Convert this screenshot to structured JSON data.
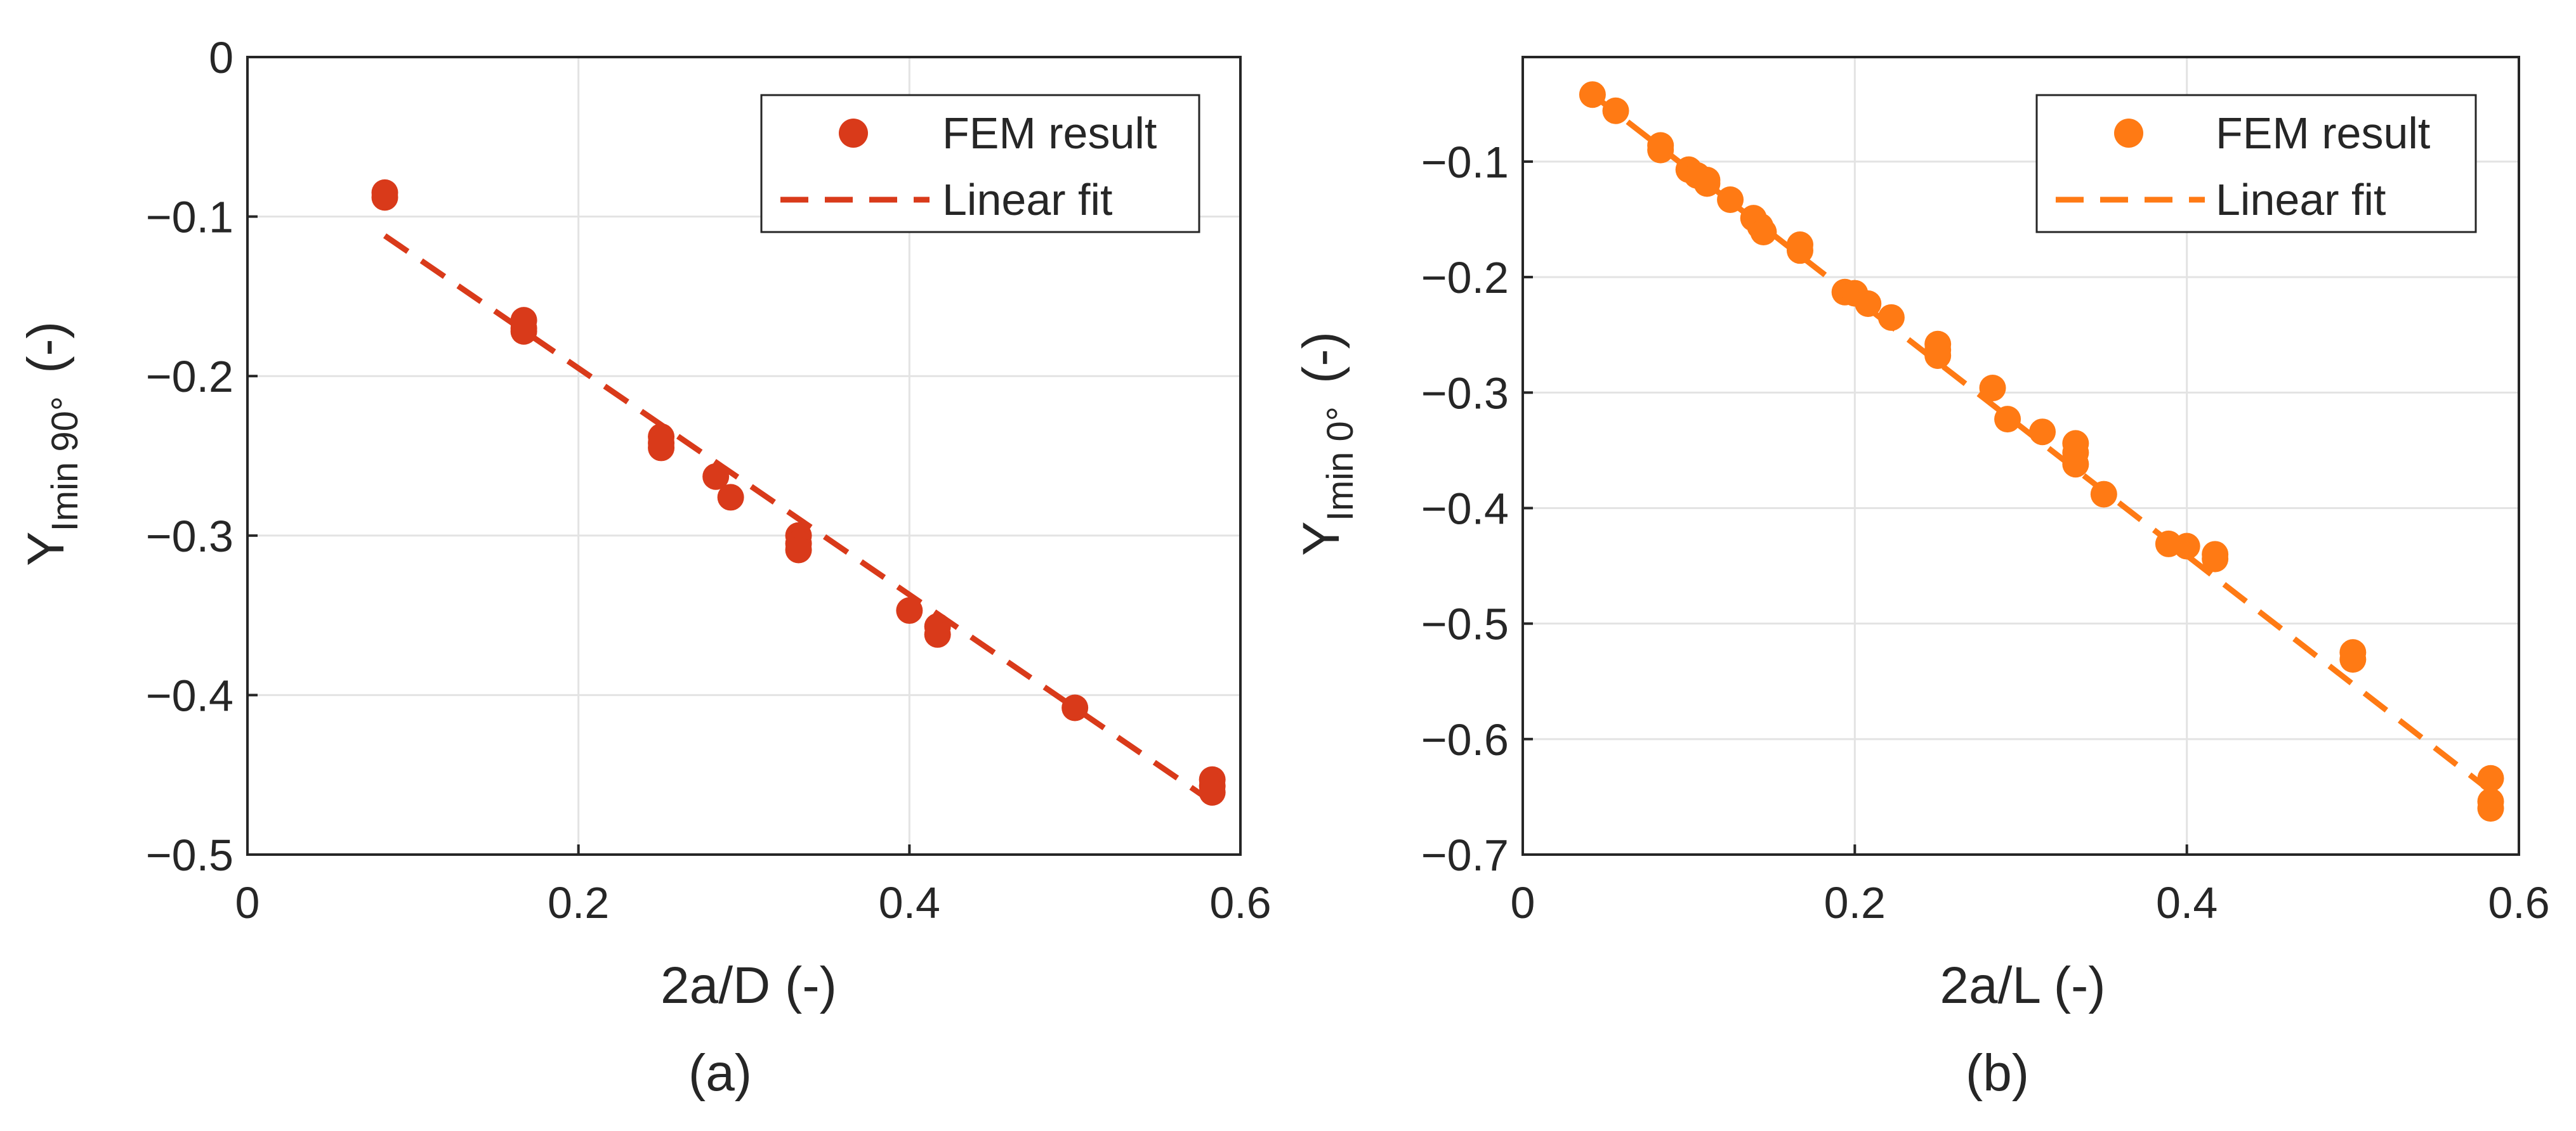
{
  "chart_data": [
    {
      "type": "scatter",
      "panel_label": "(a)",
      "xlabel": "2a/D (-)",
      "ylabel_main": "Y",
      "ylabel_sub": "Imin 90°",
      "ylabel_unit": "(-)",
      "xlim": [
        0,
        0.6
      ],
      "ylim": [
        -0.5,
        0
      ],
      "xticks": [
        0,
        0.2,
        0.4,
        0.6
      ],
      "xtick_labels": [
        "0",
        "0.2",
        "0.4",
        "0.6"
      ],
      "yticks": [
        0,
        -0.1,
        -0.2,
        -0.3,
        -0.4,
        -0.5
      ],
      "ytick_labels": [
        "0",
        "−0.1",
        "−0.2",
        "−0.3",
        "−0.4",
        "−0.5"
      ],
      "grid": true,
      "color": "#d93a1a",
      "legend_position": "top-right",
      "series": [
        {
          "name": "FEM result",
          "kind": "markers",
          "x": [
            0.083,
            0.083,
            0.167,
            0.167,
            0.167,
            0.25,
            0.25,
            0.25,
            0.283,
            0.292,
            0.333,
            0.333,
            0.333,
            0.4,
            0.417,
            0.417,
            0.5,
            0.583,
            0.583,
            0.583
          ],
          "y": [
            -0.085,
            -0.088,
            -0.165,
            -0.17,
            -0.172,
            -0.238,
            -0.242,
            -0.245,
            -0.263,
            -0.276,
            -0.3,
            -0.305,
            -0.309,
            -0.347,
            -0.357,
            -0.362,
            -0.408,
            -0.453,
            -0.457,
            -0.461
          ]
        },
        {
          "name": "Linear fit",
          "kind": "dashed-line",
          "x": [
            0.083,
            0.583
          ],
          "y": [
            -0.112,
            -0.467
          ]
        }
      ]
    },
    {
      "type": "scatter",
      "panel_label": "(b)",
      "xlabel": "2a/L (-)",
      "ylabel_main": "Y",
      "ylabel_sub": "Imin 0°",
      "ylabel_unit": "(-)",
      "xlim": [
        0,
        0.6
      ],
      "ylim": [
        -0.7,
        -0.0095
      ],
      "xticks": [
        0,
        0.2,
        0.4,
        0.6
      ],
      "xtick_labels": [
        "0",
        "0.2",
        "0.4",
        "0.6"
      ],
      "yticks": [
        -0.1,
        -0.2,
        -0.3,
        -0.4,
        -0.5,
        -0.6,
        -0.7
      ],
      "ytick_labels": [
        "−0.1",
        "−0.2",
        "−0.3",
        "−0.4",
        "−0.5",
        "−0.6",
        "−0.7"
      ],
      "grid": true,
      "color": "#ff7a14",
      "legend_position": "top-right",
      "series": [
        {
          "name": "FEM result",
          "kind": "markers",
          "x": [
            0.042,
            0.056,
            0.083,
            0.083,
            0.1,
            0.105,
            0.111,
            0.111,
            0.125,
            0.139,
            0.143,
            0.145,
            0.167,
            0.167,
            0.194,
            0.2,
            0.208,
            0.222,
            0.25,
            0.25,
            0.25,
            0.283,
            0.292,
            0.313,
            0.333,
            0.333,
            0.333,
            0.35,
            0.389,
            0.4,
            0.417,
            0.417,
            0.5,
            0.5,
            0.583,
            0.583,
            0.583
          ],
          "y": [
            -0.042,
            -0.056,
            -0.086,
            -0.09,
            -0.107,
            -0.112,
            -0.116,
            -0.119,
            -0.133,
            -0.149,
            -0.156,
            -0.161,
            -0.172,
            -0.177,
            -0.213,
            -0.214,
            -0.223,
            -0.235,
            -0.258,
            -0.263,
            -0.268,
            -0.296,
            -0.323,
            -0.334,
            -0.344,
            -0.352,
            -0.362,
            -0.388,
            -0.431,
            -0.433,
            -0.44,
            -0.444,
            -0.525,
            -0.531,
            -0.634,
            -0.654,
            -0.66
          ]
        },
        {
          "name": "Linear fit",
          "kind": "dashed-line",
          "x": [
            0.042,
            0.583
          ],
          "y": [
            -0.042,
            -0.645
          ]
        }
      ]
    }
  ]
}
